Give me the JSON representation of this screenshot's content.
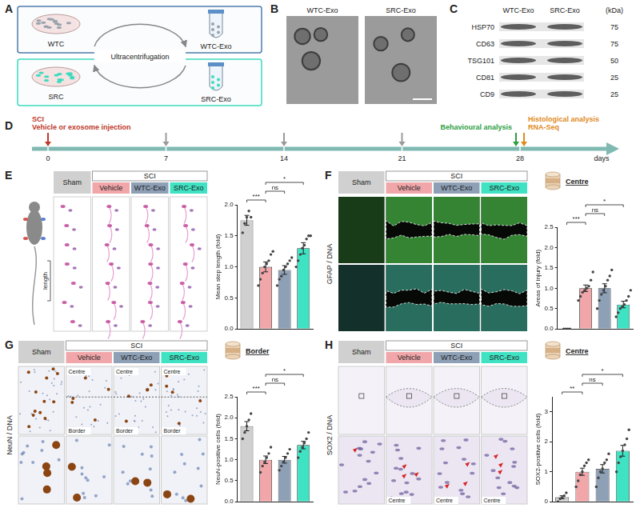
{
  "figure": {
    "A": {
      "letter": "A",
      "top": {
        "cells": "WTC",
        "exosomes": "WTC-Exo",
        "color": "#4f7cac"
      },
      "bottom": {
        "cells": "SRC",
        "exosomes": "SRC-Exo",
        "color": "#3ddbbd"
      },
      "method": "Ultracentrifugation"
    },
    "B": {
      "letter": "B",
      "images": [
        "WTC-Exo",
        "SRC-Exo"
      ]
    },
    "C": {
      "letter": "C",
      "columns": [
        "WTC-Exo",
        "SRC-Exo"
      ],
      "unit": "(kDa)",
      "bands": [
        {
          "protein": "HSP70",
          "kDa": 75
        },
        {
          "protein": "CD63",
          "kDa": 75
        },
        {
          "protein": "TSG101",
          "kDa": 50
        },
        {
          "protein": "CD81",
          "kDa": 25
        },
        {
          "protein": "CD9",
          "kDa": 25
        }
      ]
    },
    "D": {
      "letter": "D",
      "ticks": [
        0,
        7,
        14,
        21,
        28
      ],
      "unit": "days",
      "injections": [
        7,
        14,
        21
      ],
      "events": [
        {
          "day": 0,
          "lines": [
            "SCI",
            "Vehicle or exosome injection"
          ],
          "color": "#c0392b"
        },
        {
          "day": 28,
          "lines": [
            "Behavioural analysis"
          ],
          "color": "#2e9e44"
        },
        {
          "day": 28,
          "lines": [
            "Histological analysis",
            "RNA-Seq"
          ],
          "color": "#e08a1e"
        }
      ]
    }
  },
  "chart_data": [
    {
      "type": "bar",
      "panel": "E",
      "header": "SCI",
      "schematic_label": "length",
      "categories": [
        "Sham",
        "Vehicle",
        "WTC-Exo",
        "SRC-Exo"
      ],
      "colors": [
        "#d0d0d0",
        "#f1a7aa",
        "#8ea0b6",
        "#3fe3c3"
      ],
      "values": [
        1.75,
        1.0,
        0.95,
        1.3
      ],
      "errors": [
        0.08,
        0.08,
        0.07,
        0.09
      ],
      "points": [
        [
          1.55,
          1.7,
          1.8,
          1.9,
          1.8
        ],
        [
          0.7,
          0.8,
          0.9,
          1.0,
          1.05,
          1.1,
          1.2,
          1.25
        ],
        [
          0.7,
          0.8,
          0.85,
          0.95,
          1.0,
          1.05,
          1.1,
          1.15
        ],
        [
          1.0,
          1.1,
          1.2,
          1.3,
          1.35,
          1.45,
          1.5,
          1.5
        ]
      ],
      "ylabel": "Mean step length (fold)",
      "ylim": [
        0,
        2
      ],
      "yticks": [
        {
          "value": 0,
          "label": "0.0"
        },
        0.5,
        {
          "value": 1,
          "label": "1.0"
        },
        1.5,
        {
          "value": 2,
          "label": "2.0"
        }
      ],
      "significance": [
        {
          "pair": [
            "Sham",
            "Vehicle"
          ],
          "label": "***"
        },
        {
          "pair": [
            "Vehicle",
            "WTC-Exo"
          ],
          "label": "ns"
        },
        {
          "pair": [
            "Vehicle",
            "SRC-Exo"
          ],
          "label": "*"
        }
      ],
      "grid": false,
      "tick_labels": "y"
    },
    {
      "type": "bar",
      "panel": "F",
      "header": "SCI",
      "stain": "GFAP / DNA",
      "region": "Centre",
      "categories": [
        "Sham",
        "Vehicle",
        "WTC-Exo",
        "SRC-Exo"
      ],
      "colors": [
        "#d0d0d0",
        "#f1a7aa",
        "#8ea0b6",
        "#3fe3c3"
      ],
      "values": [
        0,
        1.0,
        1.0,
        0.6
      ],
      "errors": [
        0,
        0.08,
        0.11,
        0.08
      ],
      "points": [
        [
          0,
          0,
          0,
          0
        ],
        [
          0.7,
          0.8,
          0.9,
          0.95,
          1.0,
          1.05,
          1.2,
          1.4
        ],
        [
          0.5,
          0.7,
          0.85,
          0.95,
          1.05,
          1.2,
          1.3,
          1.45
        ],
        [
          0.3,
          0.4,
          0.5,
          0.55,
          0.6,
          0.7,
          0.8,
          0.95
        ]
      ],
      "ylabel": "Areas of injury (fold)",
      "ylim": [
        0,
        2.5
      ],
      "yticks": [
        {
          "value": 0,
          "label": "0.0"
        },
        0.5,
        {
          "value": 1,
          "label": "1.0"
        },
        1.5,
        {
          "value": 2,
          "label": "2.0"
        },
        2.5
      ],
      "significance": [
        {
          "pair": [
            "Sham",
            "Vehicle"
          ],
          "label": "***"
        },
        {
          "pair": [
            "Vehicle",
            "WTC-Exo"
          ],
          "label": "ns"
        },
        {
          "pair": [
            "Vehicle",
            "SRC-Exo"
          ],
          "label": "*"
        }
      ],
      "grid": false,
      "tick_labels": "y"
    },
    {
      "type": "bar",
      "panel": "G",
      "header": "SCI",
      "stain": "NeuN / DNA",
      "region": "Border",
      "image_labels": [
        "Centre",
        "Border"
      ],
      "categories": [
        "Sham",
        "Vehicle",
        "WTC-Exo",
        "SRC-Exo"
      ],
      "colors": [
        "#d0d0d0",
        "#f1a7aa",
        "#8ea0b6",
        "#3fe3c3"
      ],
      "values": [
        1.8,
        1.0,
        1.0,
        1.35
      ],
      "errors": [
        0.11,
        0.09,
        0.08,
        0.09
      ],
      "points": [
        [
          1.5,
          1.65,
          1.8,
          1.95,
          2.1
        ],
        [
          0.7,
          0.85,
          0.95,
          1.05,
          1.15,
          1.3
        ],
        [
          0.75,
          0.85,
          0.95,
          1.05,
          1.15,
          1.25
        ],
        [
          1.05,
          1.2,
          1.3,
          1.4,
          1.5,
          1.65
        ]
      ],
      "ylabel": "NeuN-positive cells (fold)",
      "ylim": [
        0,
        2.5
      ],
      "yticks": [
        {
          "value": 0,
          "label": "0.0"
        },
        0.5,
        {
          "value": 1,
          "label": "1.0"
        },
        1.5,
        {
          "value": 2,
          "label": "2.0"
        },
        2.5
      ],
      "significance": [
        {
          "pair": [
            "Sham",
            "Vehicle"
          ],
          "label": "***"
        },
        {
          "pair": [
            "Vehicle",
            "WTC-Exo"
          ],
          "label": "ns"
        },
        {
          "pair": [
            "Vehicle",
            "SRC-Exo"
          ],
          "label": "*"
        }
      ],
      "grid": false,
      "tick_labels": "y"
    },
    {
      "type": "bar",
      "panel": "H",
      "header": "SCI",
      "stain": "SOX2 / DNA",
      "region": "Centre",
      "image_labels": [
        "Centre"
      ],
      "categories": [
        "Sham",
        "Vehicle",
        "WTC-Exo",
        "SRC-Exo"
      ],
      "colors": [
        "#d0d0d0",
        "#f1a7aa",
        "#8ea0b6",
        "#3fe3c3"
      ],
      "values": [
        0.15,
        1.0,
        1.1,
        1.7
      ],
      "errors": [
        0.05,
        0.12,
        0.14,
        0.18
      ],
      "points": [
        [
          0,
          0.1,
          0.15,
          0.2,
          0.3
        ],
        [
          0.5,
          0.7,
          0.9,
          1.0,
          1.2,
          1.3,
          1.4
        ],
        [
          0.5,
          0.8,
          1.0,
          1.1,
          1.3,
          1.4,
          1.6
        ],
        [
          1.0,
          1.3,
          1.5,
          1.7,
          1.9,
          2.1,
          2.4
        ]
      ],
      "ylabel": "SOX2-positive cells (fold)",
      "ylim": [
        0,
        3.5
      ],
      "yticks": [
        0,
        1,
        2,
        3
      ],
      "significance": [
        {
          "pair": [
            "Sham",
            "Vehicle"
          ],
          "label": "**"
        },
        {
          "pair": [
            "Vehicle",
            "WTC-Exo"
          ],
          "label": "ns"
        },
        {
          "pair": [
            "Vehicle",
            "SRC-Exo"
          ],
          "label": "*"
        }
      ],
      "grid": false,
      "tick_labels": "y"
    }
  ]
}
